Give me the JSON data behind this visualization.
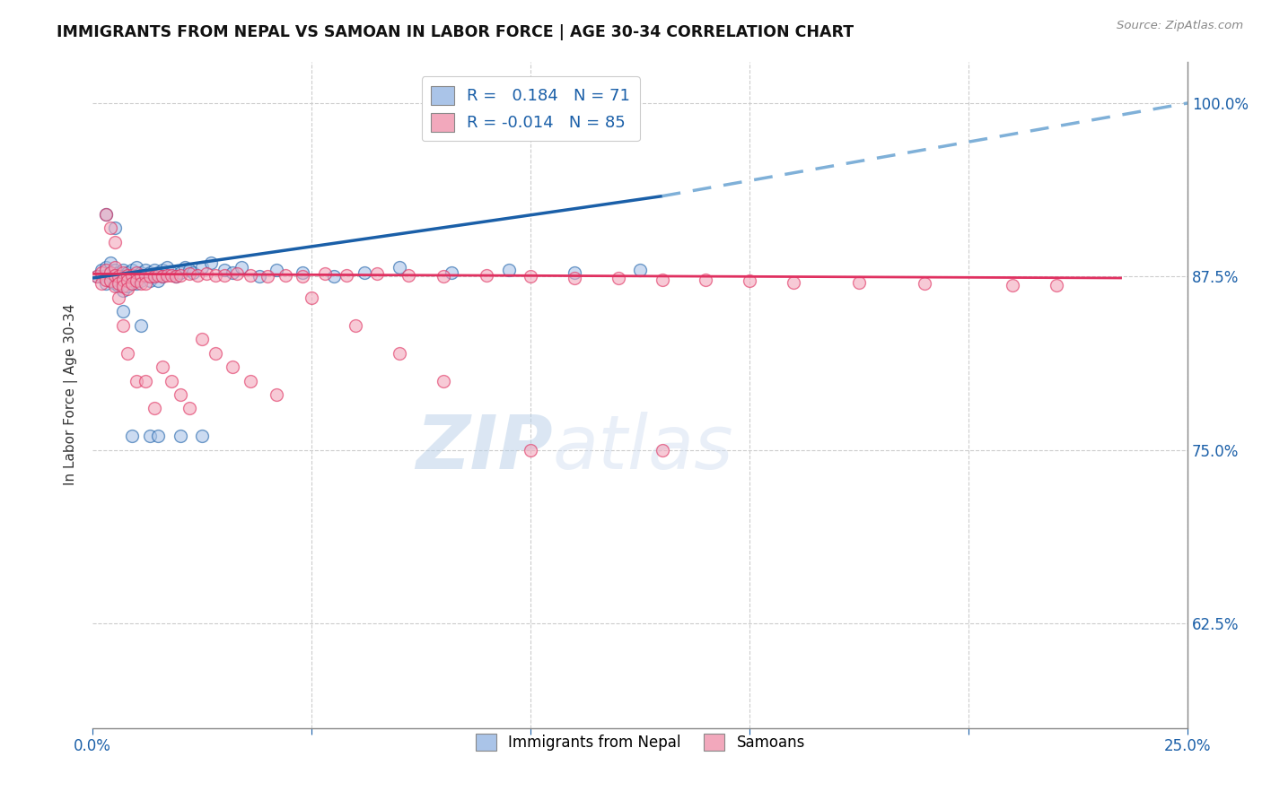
{
  "title": "IMMIGRANTS FROM NEPAL VS SAMOAN IN LABOR FORCE | AGE 30-34 CORRELATION CHART",
  "source": "Source: ZipAtlas.com",
  "ylabel": "In Labor Force | Age 30-34",
  "xlim": [
    0.0,
    0.25
  ],
  "ylim": [
    0.55,
    1.03
  ],
  "xtick_positions": [
    0.0,
    0.05,
    0.1,
    0.15,
    0.2,
    0.25
  ],
  "xtick_labels": [
    "0.0%",
    "",
    "",
    "",
    "",
    "25.0%"
  ],
  "ytick_positions": [
    0.625,
    0.75,
    0.875,
    1.0
  ],
  "ytick_labels": [
    "62.5%",
    "75.0%",
    "87.5%",
    "100.0%"
  ],
  "nepal_R": 0.184,
  "nepal_N": 71,
  "samoan_R": -0.014,
  "samoan_N": 85,
  "nepal_color": "#aac4e8",
  "samoan_color": "#f2a8bc",
  "nepal_line_color": "#1a5fa8",
  "samoan_line_color": "#e03060",
  "dashed_line_color": "#7fb0d8",
  "nepal_scatter_x": [
    0.001,
    0.002,
    0.002,
    0.003,
    0.003,
    0.003,
    0.004,
    0.004,
    0.004,
    0.005,
    0.005,
    0.005,
    0.006,
    0.006,
    0.006,
    0.007,
    0.007,
    0.007,
    0.007,
    0.008,
    0.008,
    0.008,
    0.009,
    0.009,
    0.009,
    0.01,
    0.01,
    0.01,
    0.011,
    0.011,
    0.012,
    0.012,
    0.013,
    0.013,
    0.014,
    0.014,
    0.015,
    0.015,
    0.016,
    0.016,
    0.017,
    0.018,
    0.019,
    0.02,
    0.021,
    0.022,
    0.023,
    0.025,
    0.027,
    0.03,
    0.032,
    0.034,
    0.038,
    0.042,
    0.048,
    0.055,
    0.062,
    0.07,
    0.082,
    0.095,
    0.11,
    0.125,
    0.003,
    0.005,
    0.007,
    0.009,
    0.011,
    0.013,
    0.015,
    0.02,
    0.025
  ],
  "nepal_scatter_y": [
    0.875,
    0.88,
    0.875,
    0.882,
    0.876,
    0.87,
    0.885,
    0.878,
    0.872,
    0.88,
    0.875,
    0.87,
    0.878,
    0.872,
    0.868,
    0.88,
    0.875,
    0.87,
    0.865,
    0.878,
    0.873,
    0.868,
    0.88,
    0.875,
    0.87,
    0.882,
    0.876,
    0.87,
    0.878,
    0.872,
    0.88,
    0.875,
    0.878,
    0.872,
    0.88,
    0.875,
    0.878,
    0.872,
    0.88,
    0.875,
    0.882,
    0.878,
    0.875,
    0.878,
    0.882,
    0.88,
    0.878,
    0.882,
    0.885,
    0.88,
    0.878,
    0.882,
    0.875,
    0.88,
    0.878,
    0.875,
    0.878,
    0.882,
    0.878,
    0.88,
    0.878,
    0.88,
    0.92,
    0.91,
    0.85,
    0.76,
    0.84,
    0.76,
    0.76,
    0.76,
    0.76
  ],
  "samoan_scatter_x": [
    0.001,
    0.002,
    0.002,
    0.003,
    0.003,
    0.004,
    0.004,
    0.005,
    0.005,
    0.005,
    0.006,
    0.006,
    0.007,
    0.007,
    0.007,
    0.008,
    0.008,
    0.008,
    0.009,
    0.009,
    0.01,
    0.01,
    0.011,
    0.011,
    0.012,
    0.012,
    0.013,
    0.014,
    0.015,
    0.016,
    0.017,
    0.018,
    0.019,
    0.02,
    0.022,
    0.024,
    0.026,
    0.028,
    0.03,
    0.033,
    0.036,
    0.04,
    0.044,
    0.048,
    0.053,
    0.058,
    0.065,
    0.072,
    0.08,
    0.09,
    0.1,
    0.11,
    0.12,
    0.13,
    0.14,
    0.15,
    0.16,
    0.175,
    0.19,
    0.21,
    0.22,
    0.003,
    0.004,
    0.005,
    0.006,
    0.007,
    0.008,
    0.01,
    0.012,
    0.014,
    0.016,
    0.018,
    0.02,
    0.022,
    0.025,
    0.028,
    0.032,
    0.036,
    0.042,
    0.05,
    0.06,
    0.07,
    0.08,
    0.1,
    0.13
  ],
  "samoan_scatter_y": [
    0.875,
    0.878,
    0.87,
    0.88,
    0.873,
    0.878,
    0.872,
    0.882,
    0.876,
    0.868,
    0.875,
    0.87,
    0.878,
    0.873,
    0.868,
    0.876,
    0.872,
    0.866,
    0.876,
    0.87,
    0.878,
    0.872,
    0.876,
    0.87,
    0.876,
    0.87,
    0.875,
    0.875,
    0.876,
    0.875,
    0.876,
    0.876,
    0.875,
    0.876,
    0.877,
    0.876,
    0.877,
    0.876,
    0.876,
    0.877,
    0.876,
    0.875,
    0.876,
    0.875,
    0.877,
    0.876,
    0.877,
    0.876,
    0.875,
    0.876,
    0.875,
    0.874,
    0.874,
    0.873,
    0.873,
    0.872,
    0.871,
    0.871,
    0.87,
    0.869,
    0.869,
    0.92,
    0.91,
    0.9,
    0.86,
    0.84,
    0.82,
    0.8,
    0.8,
    0.78,
    0.81,
    0.8,
    0.79,
    0.78,
    0.83,
    0.82,
    0.81,
    0.8,
    0.79,
    0.86,
    0.84,
    0.82,
    0.8,
    0.75,
    0.75
  ]
}
